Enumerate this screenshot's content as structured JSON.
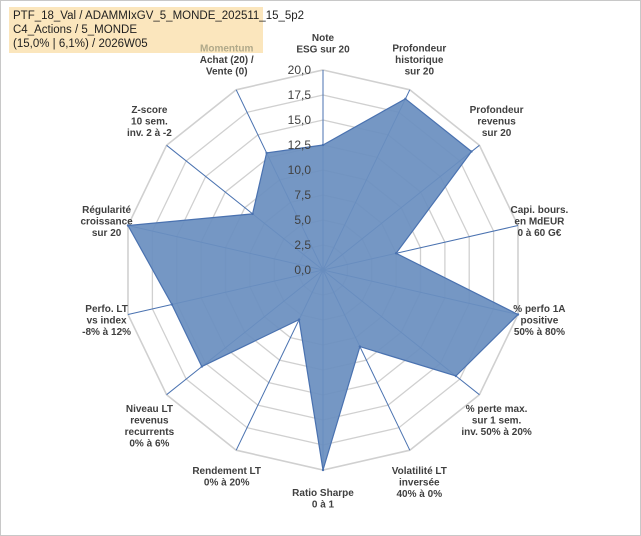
{
  "header": {
    "line1": "PTF_18_Val / ADAMMIxGV_5_MONDE_202511_15_5p2",
    "line2": "C4_Actions / 5_MONDE",
    "line3": "(15,0% | 6,1%) / 2026W05"
  },
  "chart_data": {
    "type": "radar",
    "title": "",
    "rmax": 20,
    "tick_step": 2.5,
    "tick_labels": [
      "0,0",
      "2,5",
      "5,0",
      "7,5",
      "10,0",
      "12,5",
      "15,0",
      "17,5",
      "20,0"
    ],
    "fill_color": "#6b8fbf",
    "line_color": "#4a72b0",
    "grid_color": "#d0d0d0",
    "axes": [
      {
        "name": "Note ESG sur 20",
        "label_lines": [
          "Note",
          "ESG sur 20"
        ],
        "value": 12.5
      },
      {
        "name": "Profondeur historique sur 20",
        "label_lines": [
          "Profondeur",
          "historique",
          "sur 20"
        ],
        "value": 19.0
      },
      {
        "name": "Profondeur revenus sur 20",
        "label_lines": [
          "Profondeur",
          "revenus",
          "sur 20"
        ],
        "value": 19.0
      },
      {
        "name": "Capi. bours. en MdEUR 0 à 60 G€",
        "label_lines": [
          "Capi. bours.",
          "en MdEUR",
          "0 à 60 G€"
        ],
        "value": 7.5
      },
      {
        "name": "% perfo 1A positive 50% à 80%",
        "label_lines": [
          "% perfo 1A",
          "positive",
          "50% à 80%"
        ],
        "value": 20.0
      },
      {
        "name": "% perte max. sur 1 sem. inv. 50% à 20%",
        "label_lines": [
          "% perte max.",
          "sur 1 sem.",
          "inv. 50% à 20%"
        ],
        "value": 17.0
      },
      {
        "name": "Volatilité LT inversée 40% à 0%",
        "label_lines": [
          "Volatilité LT",
          "inversée",
          "40% à 0%"
        ],
        "value": 8.5
      },
      {
        "name": "Ratio Sharpe 0 à 1",
        "label_lines": [
          "Ratio Sharpe",
          "0 à 1"
        ],
        "value": 20.0
      },
      {
        "name": "Rendement LT 0% à 20%",
        "label_lines": [
          "Rendement LT",
          "0% à 20%"
        ],
        "value": 5.5
      },
      {
        "name": "Niveau LT revenus recurrents 0% à 6%",
        "label_lines": [
          "Niveau LT",
          "revenus",
          "recurrents",
          "0% à 6%"
        ],
        "value": 15.5
      },
      {
        "name": "Perfo. LT vs index -8% à 12%",
        "label_lines": [
          "Perfo. LT",
          "vs index",
          "-8% à 12%"
        ],
        "value": 15.5
      },
      {
        "name": "Régularité croissance sur 20",
        "label_lines": [
          "Régularité",
          "croissance",
          "sur 20"
        ],
        "value": 20.0
      },
      {
        "name": "Z-score 10 sem. inv. 2 à -2",
        "label_lines": [
          "Z-score",
          "10 sem.",
          "inv. 2 à -2"
        ],
        "value": 9.0
      },
      {
        "name": "Momentum Achat (20) / Vente (0)",
        "label_lines": [
          "Momentum",
          "Achat (20) /",
          "Vente (0)"
        ],
        "value": 13.0,
        "first_line_color": "#b0a98a"
      }
    ]
  }
}
